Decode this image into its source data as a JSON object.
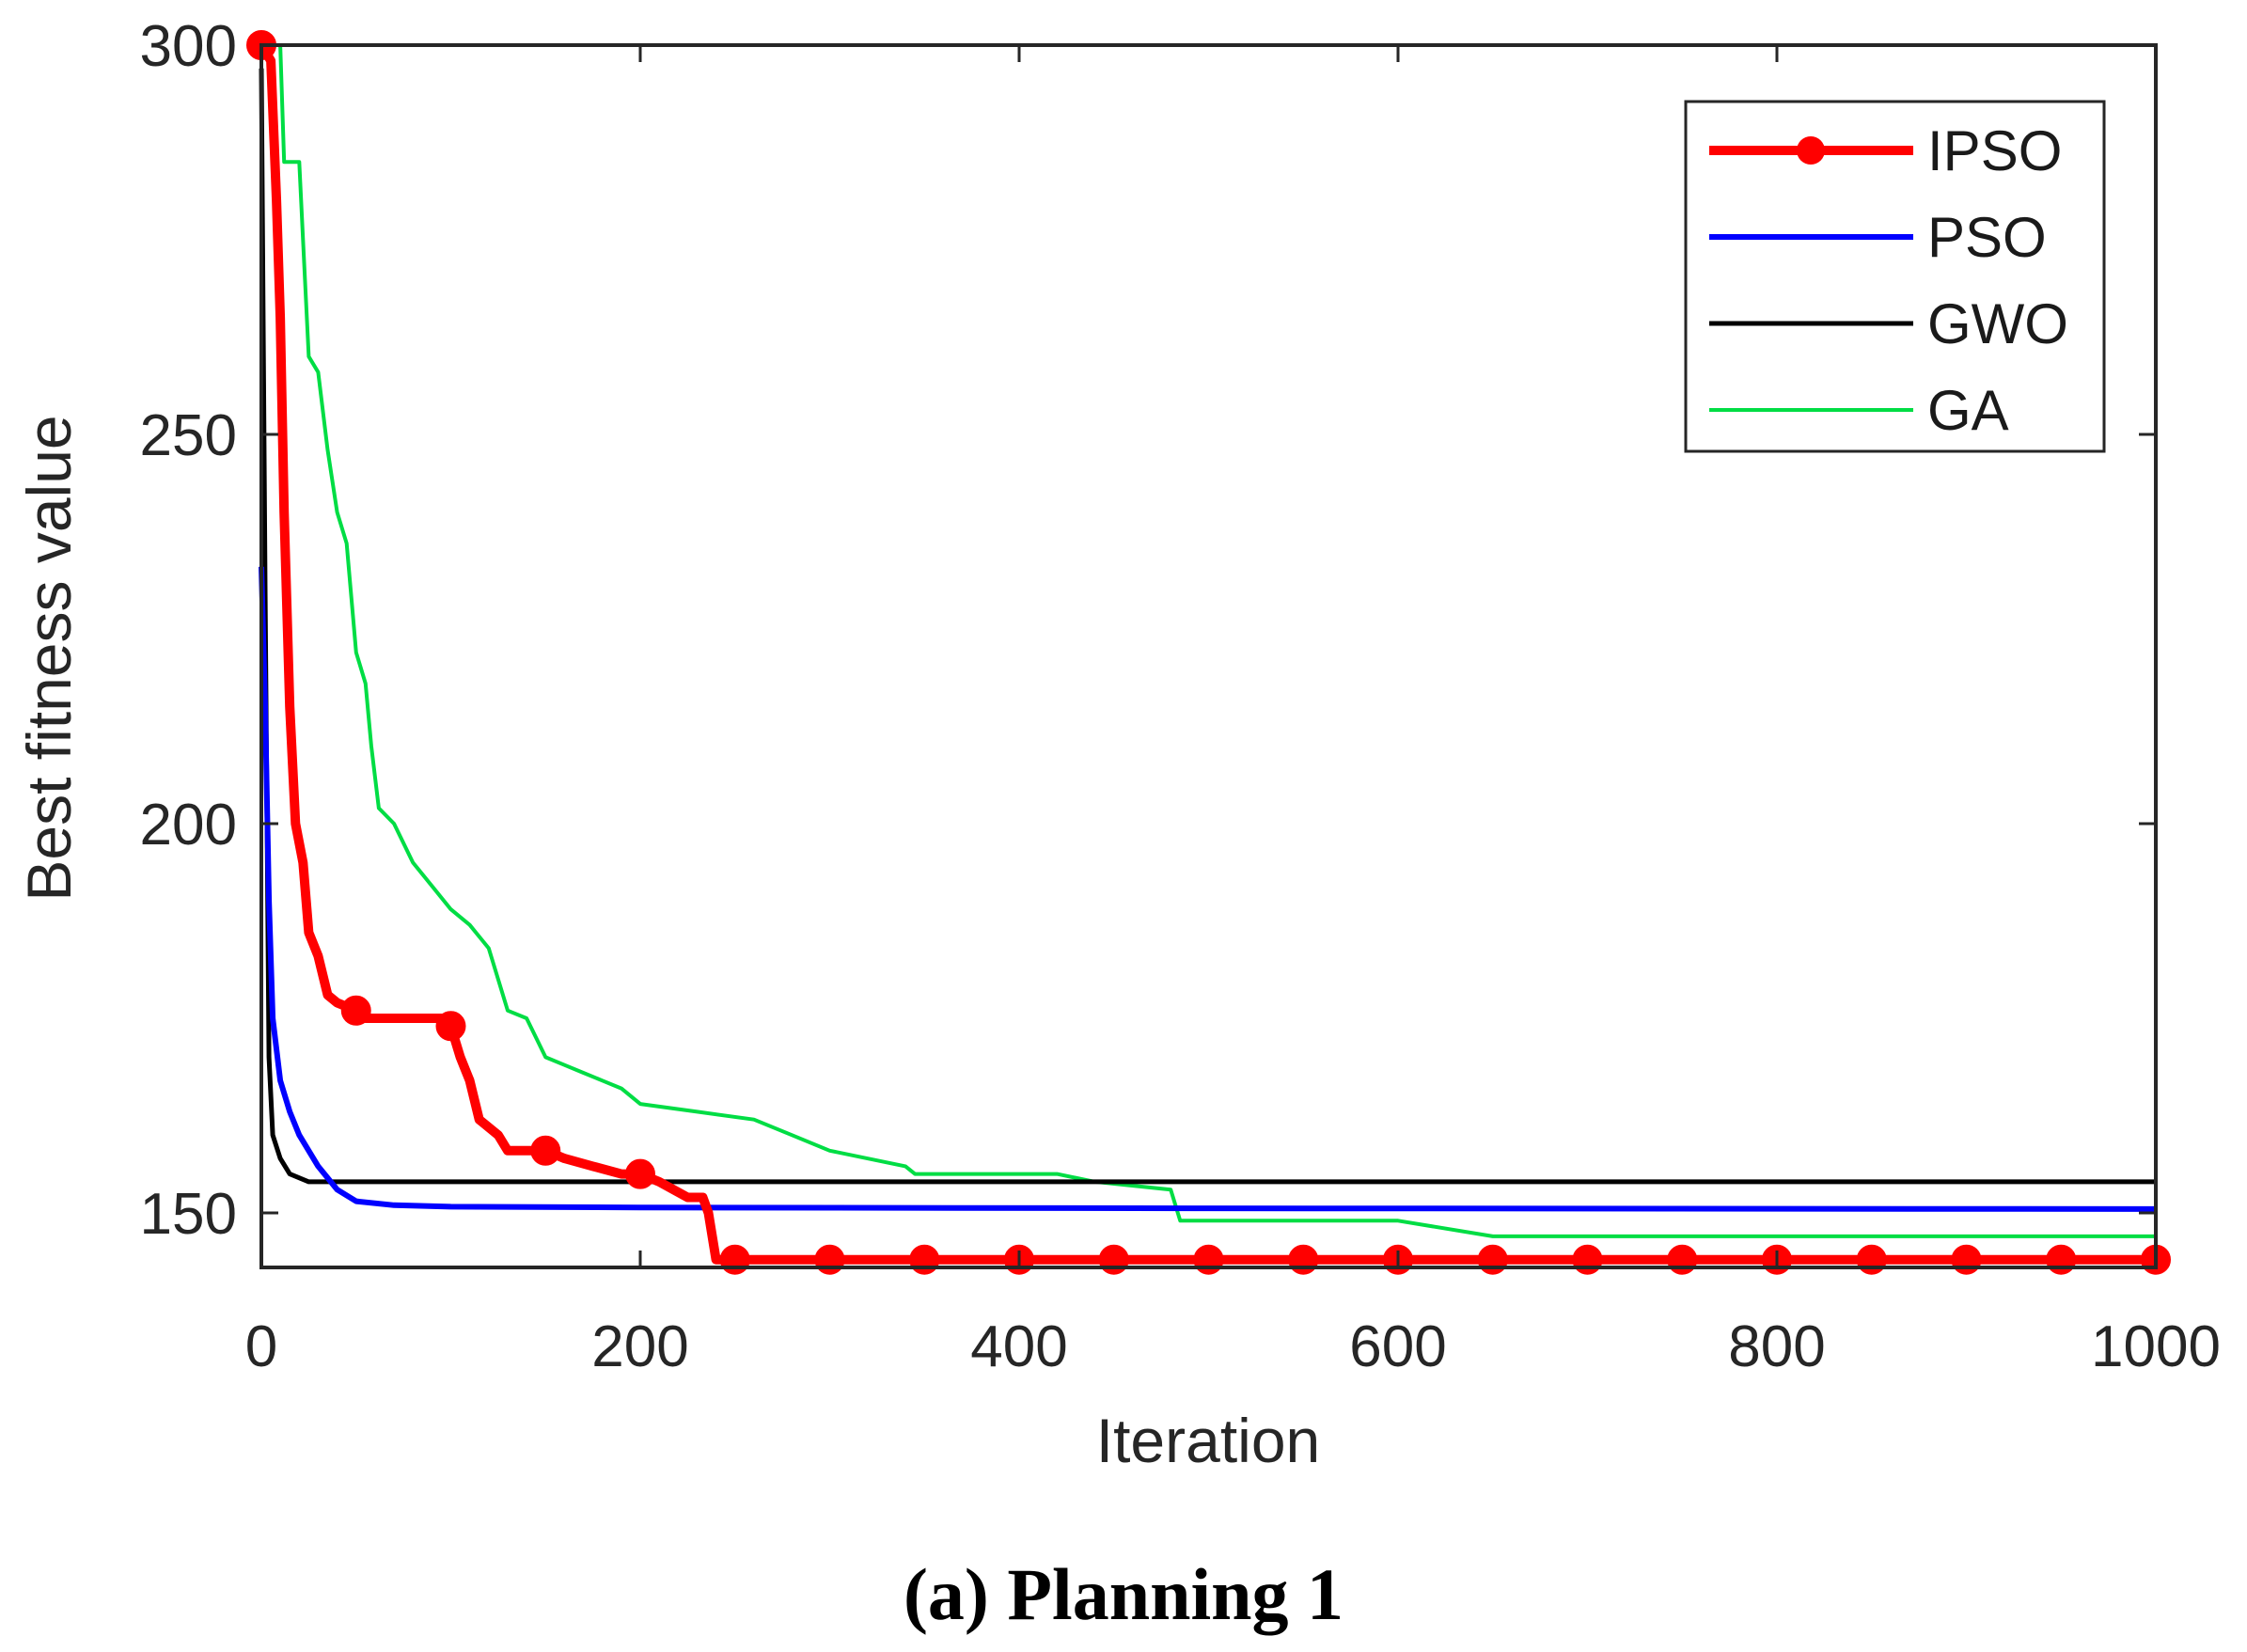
{
  "chart_data": {
    "type": "line",
    "title": "",
    "caption": "(a) Planning 1",
    "xlabel": "Iteration",
    "ylabel": "Best fitness value",
    "xlim": [
      0,
      1000
    ],
    "ylim": [
      143,
      300
    ],
    "xticks": [
      0,
      200,
      400,
      600,
      800,
      1000
    ],
    "yticks": [
      150,
      200,
      250,
      300
    ],
    "grid": false,
    "legend_position": "top-right",
    "series": [
      {
        "name": "IPSO",
        "color": "#ff0000",
        "markers": true,
        "points": [
          [
            0,
            300
          ],
          [
            5,
            298
          ],
          [
            8,
            280
          ],
          [
            10,
            265
          ],
          [
            12,
            240
          ],
          [
            15,
            215
          ],
          [
            18,
            200
          ],
          [
            22,
            195
          ],
          [
            25,
            186
          ],
          [
            30,
            183
          ],
          [
            35,
            178
          ],
          [
            40,
            177
          ],
          [
            50,
            176
          ],
          [
            55,
            175
          ],
          [
            80,
            175
          ],
          [
            95,
            175
          ],
          [
            100,
            174
          ],
          [
            105,
            170
          ],
          [
            110,
            167
          ],
          [
            115,
            162
          ],
          [
            125,
            160
          ],
          [
            130,
            158
          ],
          [
            145,
            158
          ],
          [
            150,
            158
          ],
          [
            160,
            157
          ],
          [
            175,
            156
          ],
          [
            190,
            155
          ],
          [
            200,
            155
          ],
          [
            210,
            154
          ],
          [
            225,
            152
          ],
          [
            233,
            152
          ],
          [
            236,
            150
          ],
          [
            240,
            144
          ],
          [
            1000,
            144
          ]
        ],
        "marker_x": [
          0,
          50,
          100,
          150,
          200,
          250,
          300,
          350,
          400,
          450,
          500,
          550,
          600,
          650,
          700,
          750,
          800,
          850,
          900,
          950,
          1000
        ]
      },
      {
        "name": "PSO",
        "color": "#0000ff",
        "markers": false,
        "points": [
          [
            0,
            233
          ],
          [
            2,
            215
          ],
          [
            4,
            190
          ],
          [
            6,
            175
          ],
          [
            10,
            167
          ],
          [
            15,
            163
          ],
          [
            20,
            160
          ],
          [
            30,
            156
          ],
          [
            40,
            153
          ],
          [
            50,
            151.5
          ],
          [
            70,
            151
          ],
          [
            100,
            150.8
          ],
          [
            200,
            150.7
          ],
          [
            500,
            150.6
          ],
          [
            1000,
            150.5
          ]
        ]
      },
      {
        "name": "GWO",
        "color": "#000000",
        "markers": false,
        "points": [
          [
            0,
            297
          ],
          [
            2,
            230
          ],
          [
            4,
            170
          ],
          [
            6,
            160
          ],
          [
            10,
            157
          ],
          [
            15,
            155
          ],
          [
            25,
            154
          ],
          [
            40,
            154
          ],
          [
            100,
            154
          ],
          [
            450,
            154
          ],
          [
            1000,
            154
          ]
        ]
      },
      {
        "name": "GA",
        "color": "#00dd44",
        "markers": false,
        "points": [
          [
            0,
            300
          ],
          [
            10,
            300
          ],
          [
            12,
            285
          ],
          [
            20,
            285
          ],
          [
            22,
            275
          ],
          [
            25,
            260
          ],
          [
            30,
            258
          ],
          [
            35,
            248
          ],
          [
            40,
            240
          ],
          [
            45,
            236
          ],
          [
            50,
            222
          ],
          [
            55,
            218
          ],
          [
            58,
            210
          ],
          [
            62,
            202
          ],
          [
            70,
            200
          ],
          [
            80,
            195
          ],
          [
            90,
            192
          ],
          [
            100,
            189
          ],
          [
            110,
            187
          ],
          [
            120,
            184
          ],
          [
            130,
            176
          ],
          [
            140,
            175
          ],
          [
            150,
            170
          ],
          [
            160,
            169
          ],
          [
            170,
            168
          ],
          [
            180,
            167
          ],
          [
            190,
            166
          ],
          [
            200,
            164
          ],
          [
            230,
            163
          ],
          [
            260,
            162
          ],
          [
            280,
            160
          ],
          [
            300,
            158
          ],
          [
            340,
            156
          ],
          [
            345,
            155
          ],
          [
            420,
            155
          ],
          [
            440,
            154
          ],
          [
            480,
            153
          ],
          [
            485,
            149
          ],
          [
            600,
            149
          ],
          [
            650,
            147
          ],
          [
            1000,
            147
          ]
        ]
      }
    ]
  }
}
